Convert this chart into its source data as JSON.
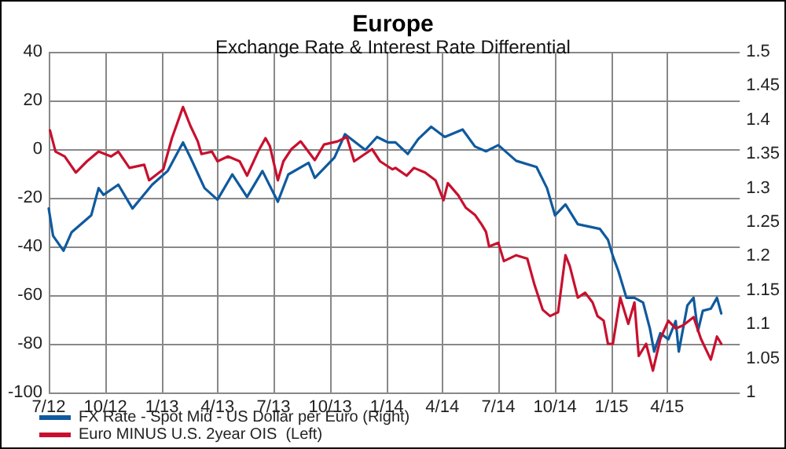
{
  "chart_data": {
    "type": "line",
    "title": "Europe",
    "subtitle": "Exchange Rate & Interest Rate Differential",
    "xlim": [
      "2012-07-01",
      "2015-07-28"
    ],
    "xticks": [
      {
        "value": "2012-07-01",
        "label": "7/12"
      },
      {
        "value": "2012-10-01",
        "label": "10/12"
      },
      {
        "value": "2013-01-01",
        "label": "1/13"
      },
      {
        "value": "2013-04-01",
        "label": "4/13"
      },
      {
        "value": "2013-07-01",
        "label": "7/13"
      },
      {
        "value": "2013-10-01",
        "label": "10/13"
      },
      {
        "value": "2014-01-01",
        "label": "1/14"
      },
      {
        "value": "2014-04-01",
        "label": "4/14"
      },
      {
        "value": "2014-07-01",
        "label": "7/14"
      },
      {
        "value": "2014-10-01",
        "label": "10/14"
      },
      {
        "value": "2015-01-01",
        "label": "1/15"
      },
      {
        "value": "2015-04-01",
        "label": "4/15"
      }
    ],
    "ylim": [
      -100,
      40
    ],
    "yticks": [
      -100,
      -80,
      -60,
      -40,
      -20,
      0,
      20,
      40
    ],
    "y2lim": [
      1,
      1.5
    ],
    "y2ticks": [
      1,
      1.05,
      1.1,
      1.15,
      1.2,
      1.25,
      1.3,
      1.35,
      1.4,
      1.45,
      1.5
    ],
    "grid": true,
    "legend": "bottom left",
    "marker": "none",
    "line_style": "solid",
    "series": [
      {
        "name": "FX Rate - Spot Mid - US Dollar per Euro (Right)",
        "color": "#0f5a9e",
        "axis": "y2",
        "x": [
          "2012-07-01",
          "2012-07-08",
          "2012-07-25",
          "2012-08-07",
          "2012-09-08",
          "2012-09-20",
          "2012-09-28",
          "2012-10-22",
          "2012-11-14",
          "2012-12-16",
          "2013-01-10",
          "2013-02-04",
          "2013-02-16",
          "2013-03-11",
          "2013-04-01",
          "2013-04-25",
          "2013-05-19",
          "2013-06-13",
          "2013-07-08",
          "2013-07-25",
          "2013-08-27",
          "2013-09-06",
          "2013-10-08",
          "2013-10-25",
          "2013-11-27",
          "2013-12-16",
          "2014-01-03",
          "2014-01-15",
          "2014-02-04",
          "2014-02-21",
          "2014-03-14",
          "2014-04-05",
          "2014-05-04",
          "2014-05-24",
          "2014-06-11",
          "2014-07-01",
          "2014-07-30",
          "2014-09-01",
          "2014-09-18",
          "2014-10-01",
          "2014-10-18",
          "2014-11-07",
          "2014-12-13",
          "2014-12-26",
          "2015-01-03",
          "2015-01-12",
          "2015-01-25",
          "2015-02-07",
          "2015-02-21",
          "2015-03-04",
          "2015-03-11",
          "2015-03-21",
          "2015-04-03",
          "2015-04-15",
          "2015-04-20",
          "2015-05-04",
          "2015-05-14",
          "2015-05-21",
          "2015-05-29",
          "2015-06-11",
          "2015-06-21",
          "2015-06-28"
        ],
        "values": [
          1.27,
          1.23,
          1.208,
          1.235,
          1.26,
          1.3,
          1.29,
          1.305,
          1.27,
          1.305,
          1.325,
          1.367,
          1.345,
          1.3,
          1.283,
          1.32,
          1.287,
          1.325,
          1.28,
          1.32,
          1.337,
          1.315,
          1.345,
          1.379,
          1.356,
          1.375,
          1.367,
          1.367,
          1.35,
          1.372,
          1.39,
          1.375,
          1.386,
          1.361,
          1.354,
          1.363,
          1.34,
          1.331,
          1.3,
          1.26,
          1.276,
          1.247,
          1.24,
          1.224,
          1.2,
          1.178,
          1.139,
          1.139,
          1.132,
          1.094,
          1.06,
          1.087,
          1.078,
          1.105,
          1.06,
          1.128,
          1.139,
          1.09,
          1.12,
          1.123,
          1.139,
          1.116
        ]
      },
      {
        "name": "Euro MINUS U.S. 2year OIS  (Left)",
        "color": "#c8102e",
        "x": [
          "2012-07-03",
          "2012-07-12",
          "2012-07-27",
          "2012-08-14",
          "2012-09-01",
          "2012-09-20",
          "2012-10-10",
          "2012-10-22",
          "2012-11-09",
          "2012-12-03",
          "2012-12-11",
          "2013-01-03",
          "2013-01-17",
          "2013-02-04",
          "2013-02-16",
          "2013-02-28",
          "2013-03-06",
          "2013-03-23",
          "2013-04-01",
          "2013-04-18",
          "2013-05-07",
          "2013-05-19",
          "2013-06-06",
          "2013-06-18",
          "2013-06-25",
          "2013-07-08",
          "2013-07-17",
          "2013-07-30",
          "2013-08-14",
          "2013-09-06",
          "2013-09-21",
          "2013-10-13",
          "2013-10-28",
          "2013-11-09",
          "2013-12-08",
          "2013-12-21",
          "2014-01-10",
          "2014-01-15",
          "2014-02-02",
          "2014-02-14",
          "2014-03-04",
          "2014-03-21",
          "2014-04-03",
          "2014-04-10",
          "2014-04-27",
          "2014-05-09",
          "2014-05-24",
          "2014-06-04",
          "2014-06-11",
          "2014-06-16",
          "2014-07-01",
          "2014-07-10",
          "2014-07-30",
          "2014-08-17",
          "2014-08-29",
          "2014-09-11",
          "2014-09-23",
          "2014-10-06",
          "2014-10-18",
          "2014-10-25",
          "2014-11-07",
          "2014-11-19",
          "2014-12-01",
          "2014-12-09",
          "2014-12-19",
          "2014-12-26",
          "2015-01-03",
          "2015-01-15",
          "2015-01-28",
          "2015-02-07",
          "2015-02-14",
          "2015-02-26",
          "2015-03-09",
          "2015-03-21",
          "2015-04-03",
          "2015-04-15",
          "2015-04-27",
          "2015-05-14",
          "2015-05-26",
          "2015-06-11",
          "2015-06-21",
          "2015-06-28"
        ],
        "values": [
          7.7,
          -1,
          -3,
          -9.6,
          -5,
          -1,
          -3,
          -1,
          -7.7,
          -6.4,
          -12.8,
          -8.3,
          4.5,
          17.3,
          9.6,
          3.2,
          -2,
          -1,
          -5,
          -3,
          -5,
          -10.9,
          -1,
          4.5,
          1.3,
          -12.8,
          -5,
          0,
          3.2,
          -4.5,
          1.9,
          3.2,
          5,
          -5,
          0,
          -5,
          -8.3,
          -7.7,
          -10.9,
          -7.7,
          -9.6,
          -12.8,
          -21,
          -14,
          -19,
          -24,
          -27,
          -31,
          -34,
          -40,
          -38.5,
          -46,
          -43.6,
          -45,
          -56,
          -66,
          -68.6,
          -67,
          -43.6,
          -48,
          -61,
          -59,
          -63,
          -68.6,
          -70.5,
          -80,
          -80,
          -61,
          -71.8,
          -63,
          -85,
          -80,
          -91,
          -78,
          -70.5,
          -73.7,
          -72.4,
          -69,
          -78,
          -86.5,
          -77,
          -80
        ]
      }
    ]
  }
}
